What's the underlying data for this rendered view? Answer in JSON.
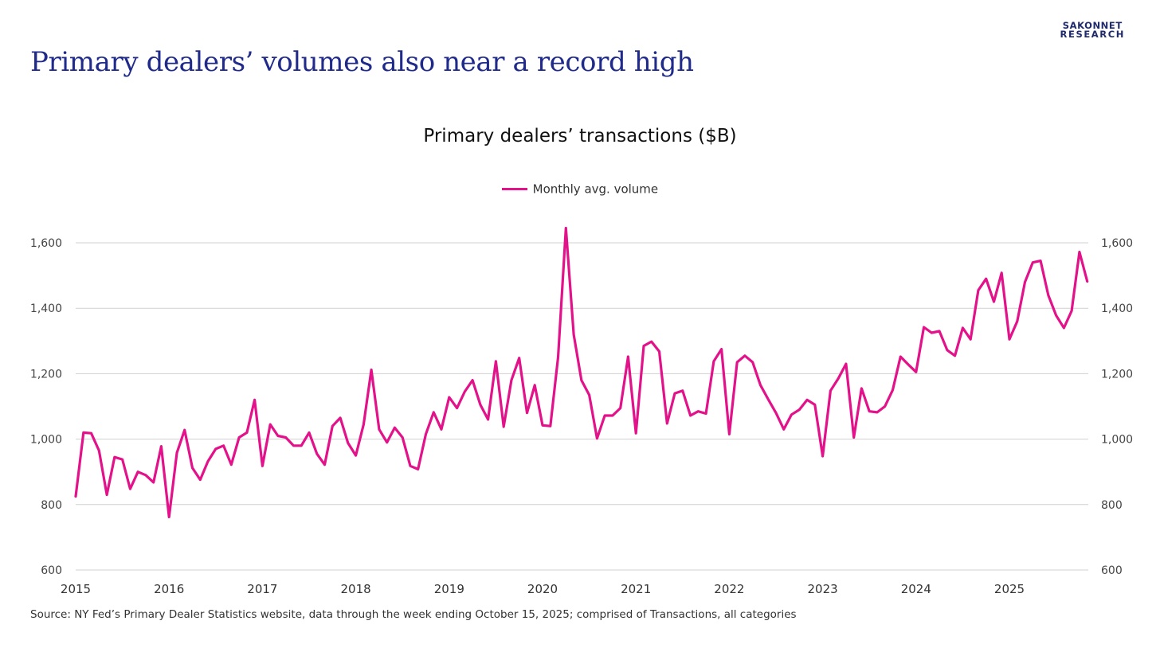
{
  "logo": {
    "line1": "SAKONNET",
    "line2": "RESEARCH"
  },
  "page_title": "Primary dealers’ volumes also near a record high",
  "source_note": "Source: NY Fed’s Primary Dealer Statistics website, data through the week ending October 15, 2025; comprised of Transactions, all categories",
  "colors": {
    "series": "#e3128a",
    "grid": "#d0d0d0",
    "title": "#1f2a8a",
    "logo": "#1f2a6b"
  },
  "chart_data": {
    "type": "line",
    "title": "Primary dealers’ transactions ($B)",
    "xlabel": "",
    "ylabel": "",
    "legend_position": "top-center",
    "grid": true,
    "ylim": [
      600,
      1600
    ],
    "y_ticks": [
      "1,600",
      "1,400",
      "1,200",
      "1,000",
      "800",
      "600"
    ],
    "y_tick_values": [
      1600,
      1400,
      1200,
      1000,
      800,
      600
    ],
    "x_ticks": [
      "2015",
      "2016",
      "2017",
      "2018",
      "2019",
      "2020",
      "2021",
      "2022",
      "2023",
      "2024",
      "2025"
    ],
    "x_start": "2015-01",
    "frequency": "monthly",
    "series": [
      {
        "name": "Monthly avg. volume",
        "values": [
          825,
          1020,
          1018,
          965,
          830,
          945,
          938,
          848,
          900,
          890,
          868,
          978,
          762,
          958,
          1028,
          912,
          876,
          932,
          970,
          980,
          922,
          1005,
          1020,
          1120,
          918,
          1045,
          1010,
          1005,
          980,
          980,
          1020,
          955,
          922,
          1040,
          1065,
          988,
          950,
          1045,
          1212,
          1030,
          990,
          1035,
          1005,
          918,
          908,
          1015,
          1082,
          1030,
          1128,
          1095,
          1145,
          1180,
          1105,
          1060,
          1238,
          1038,
          1180,
          1248,
          1080,
          1165,
          1042,
          1040,
          1250,
          1645,
          1320,
          1180,
          1135,
          1002,
          1072,
          1072,
          1095,
          1252,
          1018,
          1285,
          1298,
          1268,
          1048,
          1140,
          1148,
          1072,
          1085,
          1078,
          1238,
          1275,
          1015,
          1235,
          1255,
          1235,
          1165,
          1122,
          1080,
          1030,
          1075,
          1090,
          1120,
          1105,
          948,
          1148,
          1185,
          1230,
          1005,
          1155,
          1085,
          1082,
          1100,
          1150,
          1252,
          1228,
          1205,
          1342,
          1325,
          1330,
          1272,
          1255,
          1340,
          1305,
          1455,
          1490,
          1420,
          1508,
          1305,
          1360,
          1480,
          1540,
          1545,
          1440,
          1378,
          1340,
          1392,
          1572,
          1482
        ]
      }
    ]
  }
}
